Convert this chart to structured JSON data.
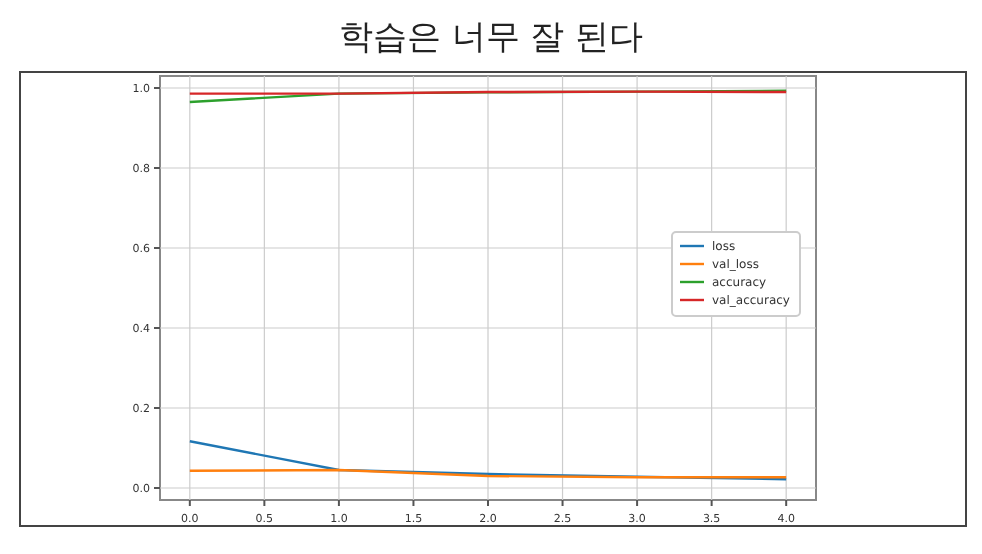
{
  "chart_data": {
    "type": "line",
    "title": "학습은 너무 잘 된다",
    "x": [
      0,
      1,
      2,
      3,
      4
    ],
    "series": [
      {
        "name": "loss",
        "color": "#1f77b4",
        "values": [
          0.117,
          0.045,
          0.035,
          0.028,
          0.022
        ]
      },
      {
        "name": "val_loss",
        "color": "#ff7f0e",
        "values": [
          0.043,
          0.045,
          0.03,
          0.027,
          0.027
        ]
      },
      {
        "name": "accuracy",
        "color": "#2ca02c",
        "values": [
          0.965,
          0.986,
          0.989,
          0.991,
          0.993
        ]
      },
      {
        "name": "val_accuracy",
        "color": "#d62728",
        "values": [
          0.986,
          0.986,
          0.99,
          0.991,
          0.99
        ]
      }
    ],
    "xlim": [
      -0.2,
      4.2
    ],
    "xticks": [
      {
        "value": 0,
        "label": "0.0"
      },
      0.5,
      {
        "value": 1,
        "label": "1.0"
      },
      1.5,
      {
        "value": 2,
        "label": "2.0"
      },
      2.5,
      {
        "value": 3,
        "label": "3.0"
      },
      3.5,
      {
        "value": 4,
        "label": "4.0"
      }
    ],
    "ylim": [
      -0.03,
      1.03
    ],
    "yticks": [
      {
        "value": 0,
        "label": "0.0"
      },
      0.2,
      0.4,
      0.6,
      0.8,
      {
        "value": 1,
        "label": "1.0"
      }
    ],
    "grid": true,
    "legend": "right",
    "marker": "none",
    "line_style": "solid"
  }
}
